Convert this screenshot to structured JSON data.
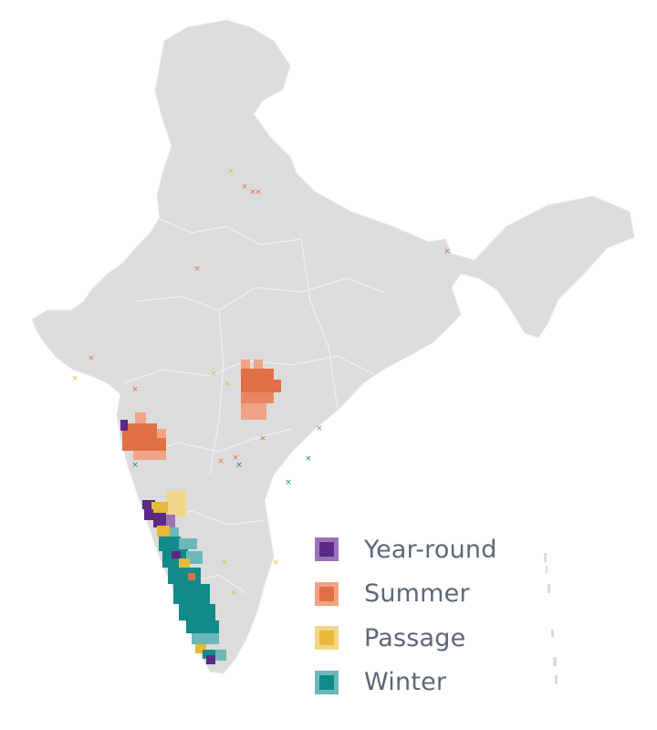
{
  "legend": [
    {
      "label": "Year-round",
      "color": "#5b2a86",
      "border": "#9a73b8"
    },
    {
      "label": "Summer",
      "color": "#e07045",
      "border": "#f0a386"
    },
    {
      "label": "Passage",
      "color": "#e8b93a",
      "border": "#f2d68a"
    },
    {
      "label": "Winter",
      "color": "#128a8a",
      "border": "#6cb8b8"
    }
  ],
  "colors": {
    "land": "#dcdcdc",
    "border": "#f3f3f3",
    "year_round": "#5b2a86",
    "summer": "#e07045",
    "passage": "#e8b93a",
    "winter": "#128a8a"
  }
}
